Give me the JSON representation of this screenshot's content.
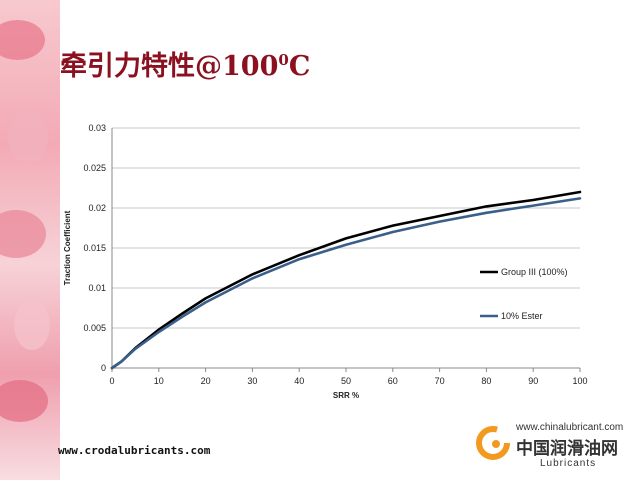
{
  "slide": {
    "title_main": "牵引力特性@100",
    "title_sup": "0",
    "title_unit": "C",
    "footer_url": "www.crodalubricants.com",
    "logo": {
      "url": "www.chinalubricant.com",
      "name_cn": "中国润滑油网",
      "name_en": "Lubricants"
    }
  },
  "chart_data": {
    "type": "line",
    "xlabel": "SRR %",
    "ylabel": "Traction Coefficient",
    "xlim": [
      0,
      100
    ],
    "ylim": [
      0,
      0.03
    ],
    "xticks": [
      "0",
      "10",
      "20",
      "30",
      "40",
      "50",
      "60",
      "70",
      "80",
      "90",
      "100"
    ],
    "yticks": [
      "0",
      "0.005",
      "0.01",
      "0.015",
      "0.02",
      "0.025",
      "0.03"
    ],
    "grid": true,
    "legend": "right",
    "series": [
      {
        "name": "Group III (100%)",
        "color": "#000000",
        "x": [
          0,
          2,
          5,
          10,
          15,
          20,
          30,
          40,
          50,
          60,
          70,
          80,
          90,
          100
        ],
        "y": [
          0,
          0.0008,
          0.0025,
          0.0048,
          0.0068,
          0.0087,
          0.0117,
          0.0141,
          0.0162,
          0.0178,
          0.019,
          0.0202,
          0.021,
          0.022
        ]
      },
      {
        "name": "10% Ester",
        "color": "#3a5f8a",
        "x": [
          0,
          2,
          5,
          10,
          15,
          20,
          30,
          40,
          50,
          60,
          70,
          80,
          90,
          100
        ],
        "y": [
          0,
          0.0008,
          0.0024,
          0.0045,
          0.0064,
          0.0082,
          0.0112,
          0.0136,
          0.0154,
          0.017,
          0.0183,
          0.0194,
          0.0203,
          0.0212
        ]
      }
    ]
  }
}
